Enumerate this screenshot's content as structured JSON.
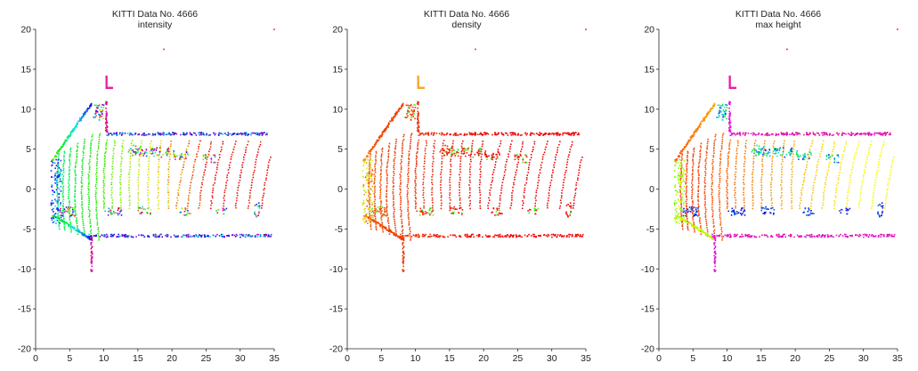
{
  "figure_title": "",
  "chart_data": [
    {
      "type": "scatter",
      "title": "KITTI Data No. 4666",
      "subtitle": "intensity",
      "xlabel": "",
      "ylabel": "",
      "xlim": [
        0,
        35
      ],
      "ylim": [
        -20,
        20
      ],
      "xticks": [
        "0",
        "5",
        "10",
        "15",
        "20",
        "25",
        "30",
        "35"
      ],
      "yticks": [
        "-20",
        "-15",
        "-10",
        "-5",
        "0",
        "5",
        "10",
        "15",
        "20"
      ],
      "grid": false,
      "color_mode": "intensity"
    },
    {
      "type": "scatter",
      "title": "KITTI Data No. 4666",
      "subtitle": "density",
      "xlabel": "",
      "ylabel": "",
      "xlim": [
        0,
        35
      ],
      "ylim": [
        -20,
        20
      ],
      "xticks": [
        "0",
        "5",
        "10",
        "15",
        "20",
        "25",
        "30",
        "35"
      ],
      "yticks": [
        "-20",
        "-15",
        "-10",
        "-5",
        "0",
        "5",
        "10",
        "15",
        "20"
      ],
      "grid": false,
      "color_mode": "density"
    },
    {
      "type": "scatter",
      "title": "KITTI Data No. 4666",
      "subtitle": "max height",
      "xlabel": "",
      "ylabel": "",
      "xlim": [
        0,
        35
      ],
      "ylim": [
        -20,
        20
      ],
      "xticks": [
        "0",
        "5",
        "10",
        "15",
        "20",
        "25",
        "30",
        "35"
      ],
      "yticks": [
        "-20",
        "-15",
        "-10",
        "-5",
        "0",
        "5",
        "10",
        "15",
        "20"
      ],
      "grid": false,
      "color_mode": "height"
    }
  ]
}
